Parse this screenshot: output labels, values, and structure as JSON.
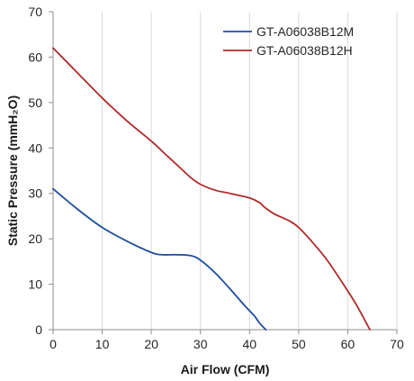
{
  "chart_data": {
    "type": "line",
    "xlabel": "Air Flow (CFM)",
    "ylabel": "Static Pressure (mmH₂O)",
    "xlim": [
      0,
      70
    ],
    "ylim": [
      0,
      70
    ],
    "x_ticks": [
      "0",
      "10",
      "20",
      "30",
      "40",
      "50",
      "60",
      "70"
    ],
    "y_ticks": [
      "0",
      "10",
      "20",
      "30",
      "40",
      "50",
      "60",
      "70"
    ],
    "grid": "vertical",
    "legend_position": "top-right",
    "series": [
      {
        "name": "GT-A06038B12M",
        "color": "#1f4e9e",
        "x": [
          0,
          5,
          10,
          15,
          20,
          22,
          25,
          28,
          30,
          33,
          36,
          39,
          41,
          42,
          43.3
        ],
        "y": [
          31,
          26.5,
          22.5,
          19.5,
          17,
          16.5,
          16.5,
          16.3,
          15.3,
          12.5,
          9,
          5.3,
          3,
          1.5,
          0
        ]
      },
      {
        "name": "GT-A06038B12H",
        "color": "#b02a2a",
        "x": [
          0,
          5,
          10,
          15,
          20,
          23,
          26,
          28,
          30,
          33,
          36,
          40,
          42,
          43,
          45,
          48,
          50,
          53,
          56,
          60,
          62,
          64.5
        ],
        "y": [
          62,
          56.5,
          51,
          46,
          41.5,
          38.5,
          35.5,
          33.5,
          32,
          30.7,
          30,
          29,
          28,
          27,
          25.5,
          24,
          22.5,
          19,
          15,
          8.5,
          5,
          0
        ]
      }
    ]
  }
}
